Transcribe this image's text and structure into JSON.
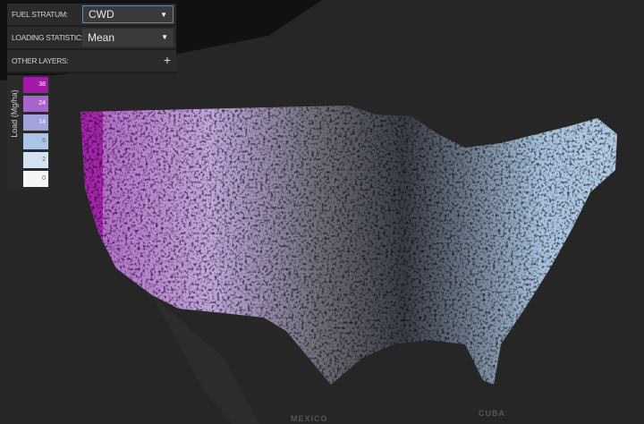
{
  "controls": {
    "fuel_stratum": {
      "label": "FUEL STRATUM:",
      "value": "CWD"
    },
    "loading_statistic": {
      "label": "LOADING STATISTIC:",
      "value": "Mean"
    },
    "other_layers": {
      "label": "OTHER LAYERS:",
      "icon": "plus-icon"
    }
  },
  "legend": {
    "title": "Load (Mg/ha)",
    "items": [
      {
        "value": "38",
        "color": "#a21aa8"
      },
      {
        "value": "24",
        "color": "#a765c9"
      },
      {
        "value": "14",
        "color": "#a3a3dc"
      },
      {
        "value": "6",
        "color": "#a9c6e6"
      },
      {
        "value": "2",
        "color": "#d3e3f1"
      },
      {
        "value": "0",
        "color": "#f4f6f8"
      }
    ]
  },
  "map_labels": {
    "mexico": "MEXICO",
    "cuba": "CUBA"
  }
}
